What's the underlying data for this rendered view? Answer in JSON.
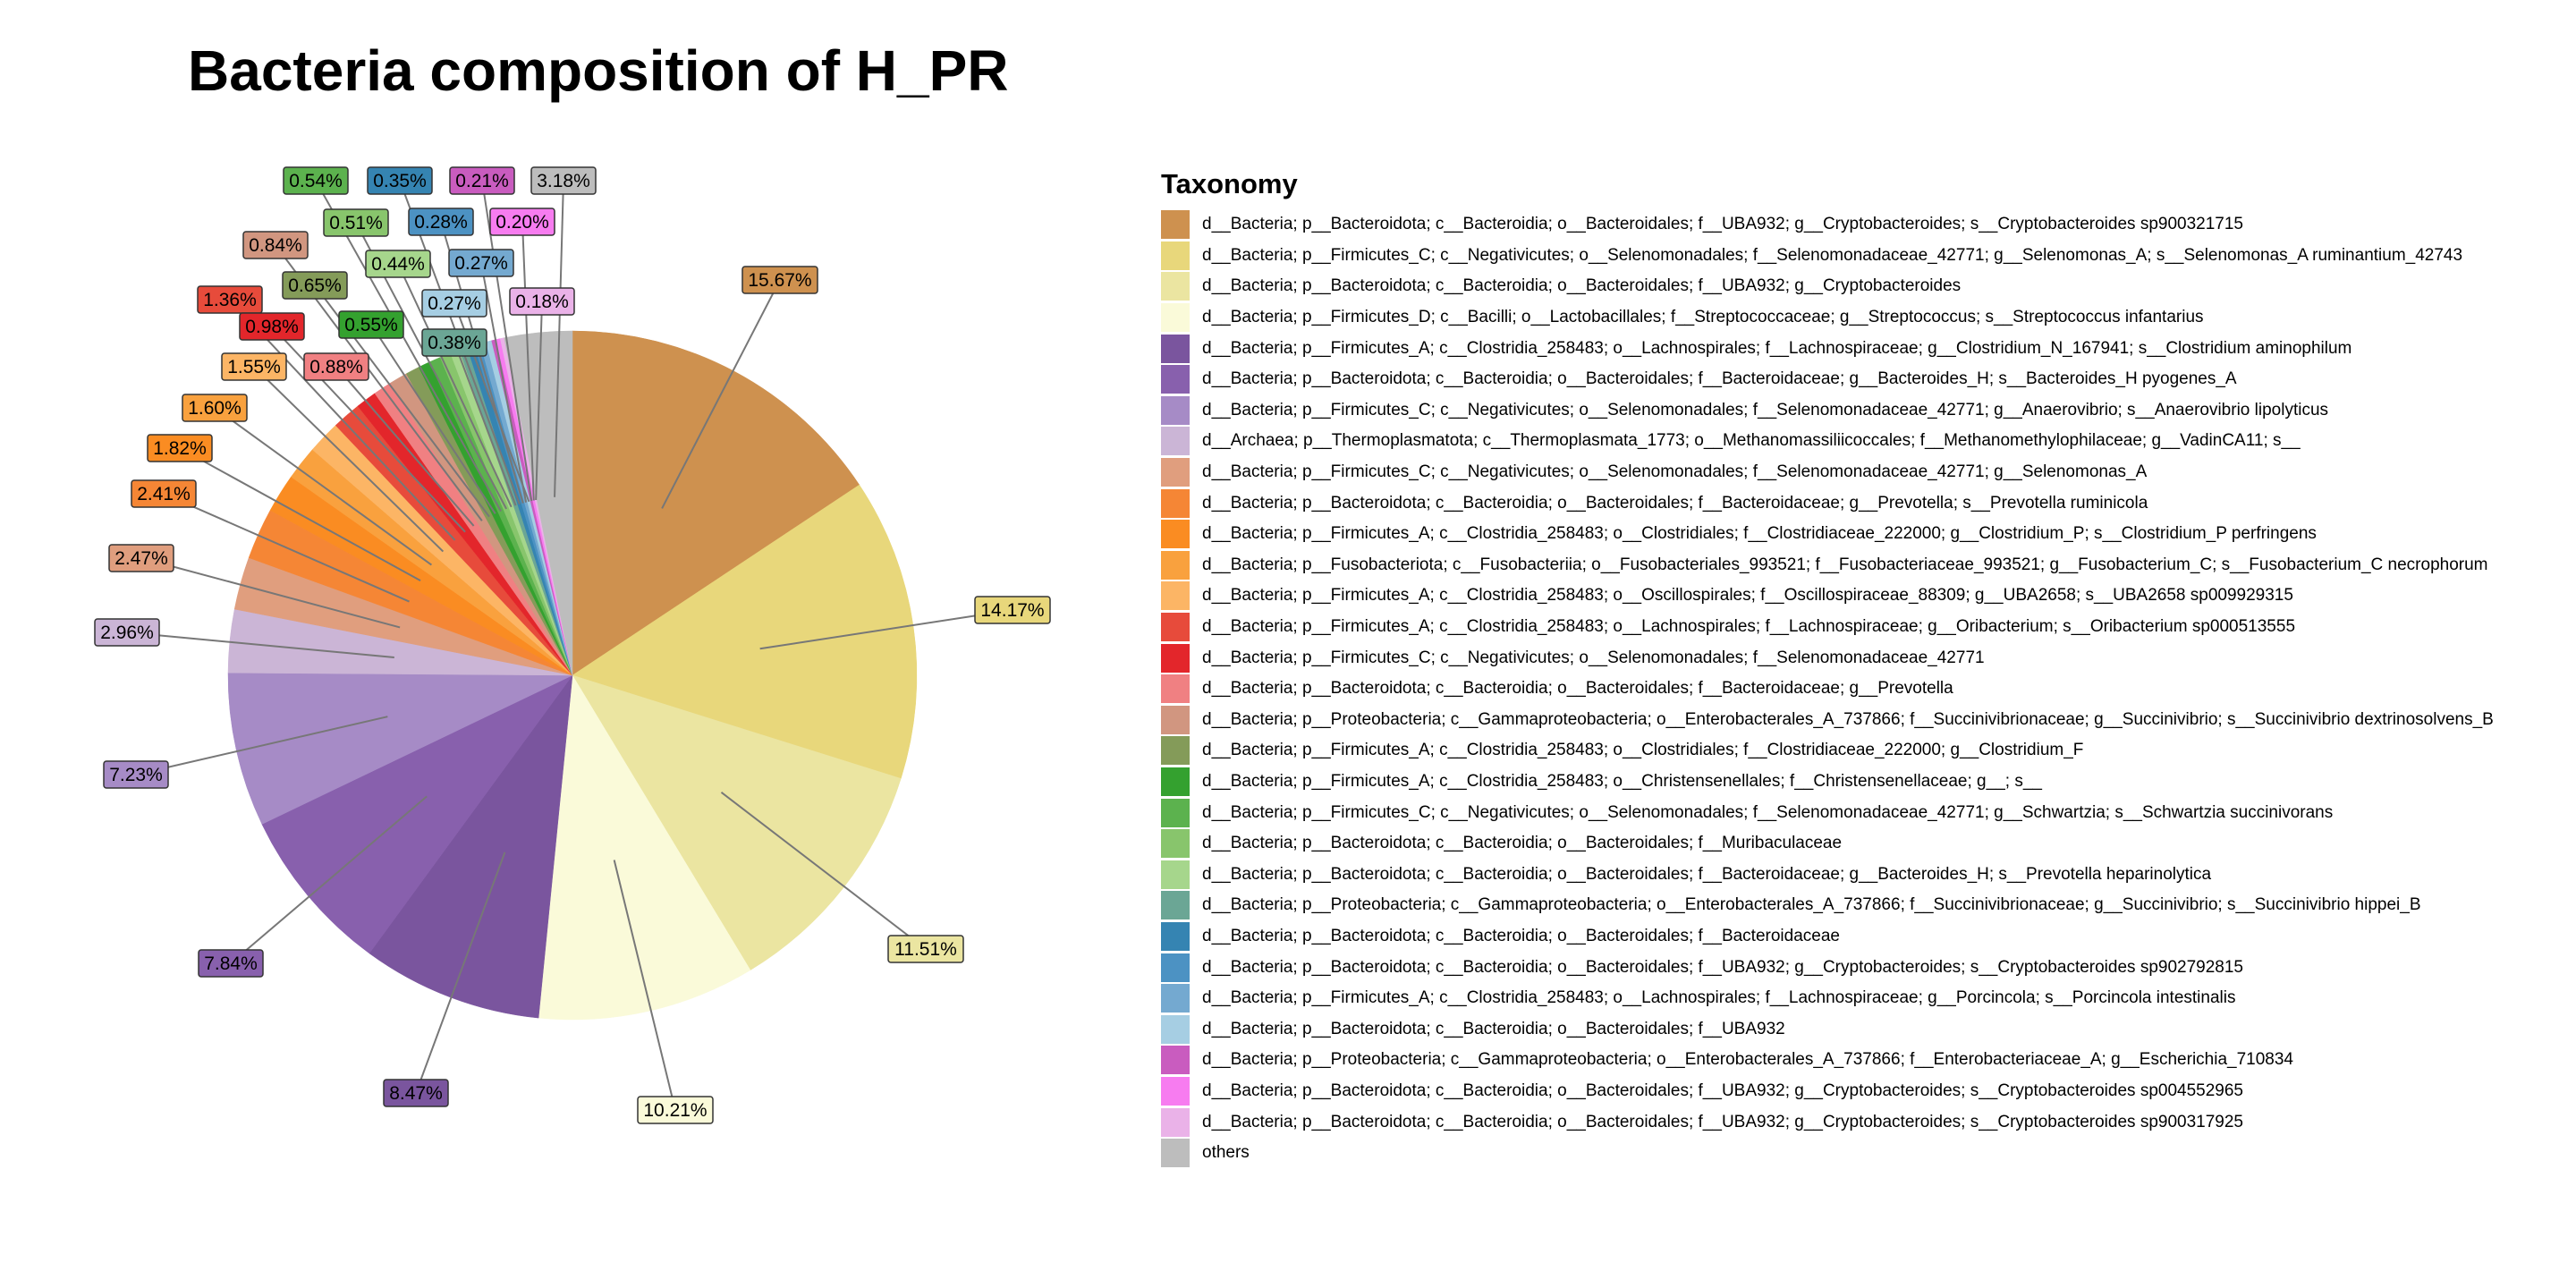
{
  "chart_data": {
    "type": "pie",
    "title": "Bacteria composition of H_PR",
    "legend_title": "Taxonomy",
    "legend_position": "right",
    "slices": [
      {
        "label": "d__Bacteria; p__Bacteroidota; c__Bacteroidia; o__Bacteroidales; f__UBA932; g__Cryptobacteroides; s__Cryptobacteroides sp900321715",
        "value": 15.67,
        "text": "15.67%",
        "color": "#CE914F"
      },
      {
        "label": "d__Bacteria; p__Firmicutes_C; c__Negativicutes; o__Selenomonadales; f__Selenomonadaceae_42771; g__Selenomonas_A; s__Selenomonas_A ruminantium_42743",
        "value": 14.17,
        "text": "14.17%",
        "color": "#E8D77B"
      },
      {
        "label": "d__Bacteria; p__Bacteroidota; c__Bacteroidia; o__Bacteroidales; f__UBA932; g__Cryptobacteroides",
        "value": 11.51,
        "text": "11.51%",
        "color": "#EBE5A1"
      },
      {
        "label": "d__Bacteria; p__Firmicutes_D; c__Bacilli; o__Lactobacillales; f__Streptococcaceae; g__Streptococcus; s__Streptococcus infantarius",
        "value": 10.21,
        "text": "10.21%",
        "color": "#FAFAD9"
      },
      {
        "label": "d__Bacteria; p__Firmicutes_A; c__Clostridia_258483; o__Lachnospirales; f__Lachnospiraceae; g__Clostridium_N_167941; s__Clostridium aminophilum",
        "value": 8.47,
        "text": "8.47%",
        "color": "#7A559E"
      },
      {
        "label": "d__Bacteria; p__Bacteroidota; c__Bacteroidia; o__Bacteroidales; f__Bacteroidaceae; g__Bacteroides_H; s__Bacteroides_H pyogenes_A",
        "value": 7.84,
        "text": "7.84%",
        "color": "#8860AD"
      },
      {
        "label": "d__Bacteria; p__Firmicutes_C; c__Negativicutes; o__Selenomonadales; f__Selenomonadaceae_42771; g__Anaerovibrio; s__Anaerovibrio lipolyticus",
        "value": 7.23,
        "text": "7.23%",
        "color": "#A68BC6"
      },
      {
        "label": "d__Archaea; p__Thermoplasmatota; c__Thermoplasmata_1773; o__Methanomassiliicoccales; f__Methanomethylophilaceae; g__VadinCA11; s__",
        "value": 2.96,
        "text": "2.96%",
        "color": "#CBB5D6"
      },
      {
        "label": "d__Bacteria; p__Firmicutes_C; c__Negativicutes; o__Selenomonadales; f__Selenomonadaceae_42771; g__Selenomonas_A",
        "value": 2.47,
        "text": "2.47%",
        "color": "#E09E7E"
      },
      {
        "label": "d__Bacteria; p__Bacteroidota; c__Bacteroidia; o__Bacteroidales; f__Bacteroidaceae; g__Prevotella; s__Prevotella ruminicola",
        "value": 2.41,
        "text": "2.41%",
        "color": "#F58635"
      },
      {
        "label": "d__Bacteria; p__Firmicutes_A; c__Clostridia_258483; o__Clostridiales; f__Clostridiaceae_222000; g__Clostridium_P; s__Clostridium_P perfringens",
        "value": 1.82,
        "text": "1.82%",
        "color": "#FA8C22"
      },
      {
        "label": "d__Bacteria; p__Fusobacteriota; c__Fusobacteriia; o__Fusobacteriales_993521; f__Fusobacteriaceae_993521; g__Fusobacterium_C; s__Fusobacterium_C necrophorum",
        "value": 1.6,
        "text": "1.60%",
        "color": "#F9A13E"
      },
      {
        "label": "d__Bacteria; p__Firmicutes_A; c__Clostridia_258483; o__Oscillospirales; f__Oscillospiraceae_88309; g__UBA2658; s__UBA2658 sp009929315",
        "value": 1.55,
        "text": "1.55%",
        "color": "#FCB565"
      },
      {
        "label": "d__Bacteria; p__Firmicutes_A; c__Clostridia_258483; o__Lachnospirales; f__Lachnospiraceae; g__Oribacterium; s__Oribacterium sp000513555",
        "value": 1.36,
        "text": "1.36%",
        "color": "#E74B3B"
      },
      {
        "label": "d__Bacteria; p__Firmicutes_C; c__Negativicutes; o__Selenomonadales; f__Selenomonadaceae_42771",
        "value": 0.98,
        "text": "0.98%",
        "color": "#E3262B"
      },
      {
        "label": "d__Bacteria; p__Bacteroidota; c__Bacteroidia; o__Bacteroidales; f__Bacteroidaceae; g__Prevotella",
        "value": 0.88,
        "text": "0.88%",
        "color": "#F08082"
      },
      {
        "label": "d__Bacteria; p__Proteobacteria; c__Gammaproteobacteria; o__Enterobacterales_A_737866; f__Succinivibrionaceae; g__Succinivibrio; s__Succinivibrio dextrinosolvens_B",
        "value": 0.84,
        "text": "0.84%",
        "color": "#D19680"
      },
      {
        "label": "d__Bacteria; p__Firmicutes_A; c__Clostridia_258483; o__Clostridiales; f__Clostridiaceae_222000; g__Clostridium_F",
        "value": 0.65,
        "text": "0.65%",
        "color": "#849B59"
      },
      {
        "label": "d__Bacteria; p__Firmicutes_A; c__Clostridia_258483; o__Christensenellales; f__Christensenellaceae; g__; s__",
        "value": 0.55,
        "text": "0.55%",
        "color": "#34A12F"
      },
      {
        "label": "d__Bacteria; p__Firmicutes_C; c__Negativicutes; o__Selenomonadales; f__Selenomonadaceae_42771; g__Schwartzia; s__Schwartzia succinivorans",
        "value": 0.54,
        "text": "0.54%",
        "color": "#5CB24E"
      },
      {
        "label": "d__Bacteria; p__Bacteroidota; c__Bacteroidia; o__Bacteroidales; f__Muribaculaceae",
        "value": 0.51,
        "text": "0.51%",
        "color": "#88C56C"
      },
      {
        "label": "d__Bacteria; p__Bacteroidota; c__Bacteroidia; o__Bacteroidales; f__Bacteroidaceae; g__Bacteroides_H; s__Prevotella heparinolytica",
        "value": 0.44,
        "text": "0.44%",
        "color": "#A6D68C"
      },
      {
        "label": "d__Bacteria; p__Proteobacteria; c__Gammaproteobacteria; o__Enterobacterales_A_737866; f__Succinivibrionaceae; g__Succinivibrio; s__Succinivibrio hippei_B",
        "value": 0.38,
        "text": "0.38%",
        "color": "#6BA695"
      },
      {
        "label": "d__Bacteria; p__Bacteroidota; c__Bacteroidia; o__Bacteroidales; f__Bacteroidaceae",
        "value": 0.35,
        "text": "0.35%",
        "color": "#3584B2"
      },
      {
        "label": "d__Bacteria; p__Bacteroidota; c__Bacteroidia; o__Bacteroidales; f__UBA932; g__Cryptobacteroides; s__Cryptobacteroides sp902792815",
        "value": 0.28,
        "text": "0.28%",
        "color": "#4C92C3"
      },
      {
        "label": "d__Bacteria; p__Firmicutes_A; c__Clostridia_258483; o__Lachnospirales; f__Lachnospiraceae; g__Porcincola; s__Porcincola intestinalis",
        "value": 0.27,
        "text": "0.27%",
        "color": "#74A9D0"
      },
      {
        "label": "d__Bacteria; p__Bacteroidota; c__Bacteroidia; o__Bacteroidales; f__UBA932",
        "value": 0.27,
        "text": "0.27%",
        "color": "#A6CEE3"
      },
      {
        "label": "d__Bacteria; p__Proteobacteria; c__Gammaproteobacteria; o__Enterobacterales_A_737866; f__Enterobacteriaceae_A; g__Escherichia_710834",
        "value": 0.21,
        "text": "0.21%",
        "color": "#C95CBF"
      },
      {
        "label": "d__Bacteria; p__Bacteroidota; c__Bacteroidia; o__Bacteroidales; f__UBA932; g__Cryptobacteroides; s__Cryptobacteroides sp004552965",
        "value": 0.2,
        "text": "0.20%",
        "color": "#F77CF0"
      },
      {
        "label": "d__Bacteria; p__Bacteroidota; c__Bacteroidia; o__Bacteroidales; f__UBA932; g__Cryptobacteroides; s__Cryptobacteroides sp900317925",
        "value": 0.18,
        "text": "0.18%",
        "color": "#EAB2E8"
      },
      {
        "label": "others",
        "value": 3.18,
        "text": "3.18%",
        "color": "#BDBDBD"
      }
    ]
  }
}
